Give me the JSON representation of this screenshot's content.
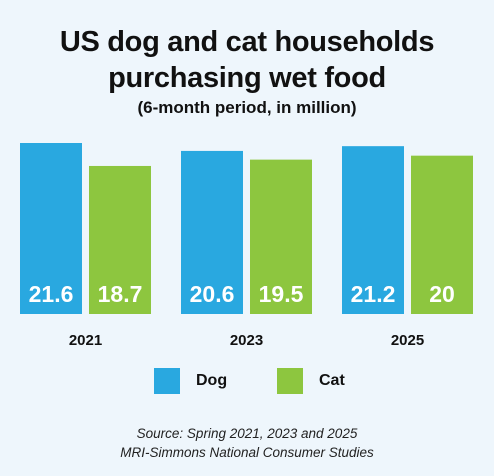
{
  "title_line1": "US dog and cat households",
  "title_line2": "purchasing wet food",
  "subtitle": "(6-month period, in million)",
  "chart_data": {
    "type": "bar",
    "title": "US dog and cat households purchasing wet food",
    "subtitle": "(6-month period, in million)",
    "categories": [
      "2021",
      "2023",
      "2025"
    ],
    "series": [
      {
        "name": "Dog",
        "color": "#29a8e0",
        "values": [
          21.6,
          20.6,
          21.2
        ]
      },
      {
        "name": "Cat",
        "color": "#8dc63f",
        "values": [
          18.7,
          19.5,
          20
        ]
      }
    ],
    "ylim": [
      0,
      21.6
    ],
    "grid": false,
    "legend": "bottom"
  },
  "legend": {
    "dog_label": "Dog",
    "cat_label": "Cat"
  },
  "source_line1": "Source: Spring 2021, 2023 and 2025",
  "source_line2": "MRI-Simmons National Consumer Studies"
}
